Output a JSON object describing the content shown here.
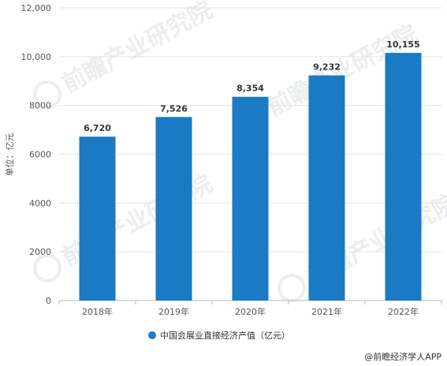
{
  "chart_data": {
    "type": "bar",
    "categories": [
      "2018年",
      "2019年",
      "2020年",
      "2021年",
      "2022年"
    ],
    "series": [
      {
        "name": "中国会展业直接经济产值（亿元）",
        "values": [
          6720,
          7526,
          8354,
          9232,
          10155
        ],
        "value_labels": [
          "6,720",
          "7,526",
          "8,354",
          "9,232",
          "10,155"
        ]
      }
    ],
    "ylabel": "单位：亿元",
    "ylim": [
      0,
      12000
    ],
    "yticks": [
      0,
      2000,
      4000,
      6000,
      8000,
      10000,
      12000
    ],
    "ytick_labels": [
      "0",
      "2000",
      "4000",
      "6000",
      "8000",
      "10,000",
      "12,000"
    ],
    "grid": true,
    "legend_position": "bottom-center",
    "bar_color": "#1a7ac4"
  },
  "credit": "@前瞻经济学人APP",
  "watermark_text": "前瞻产业研究院"
}
